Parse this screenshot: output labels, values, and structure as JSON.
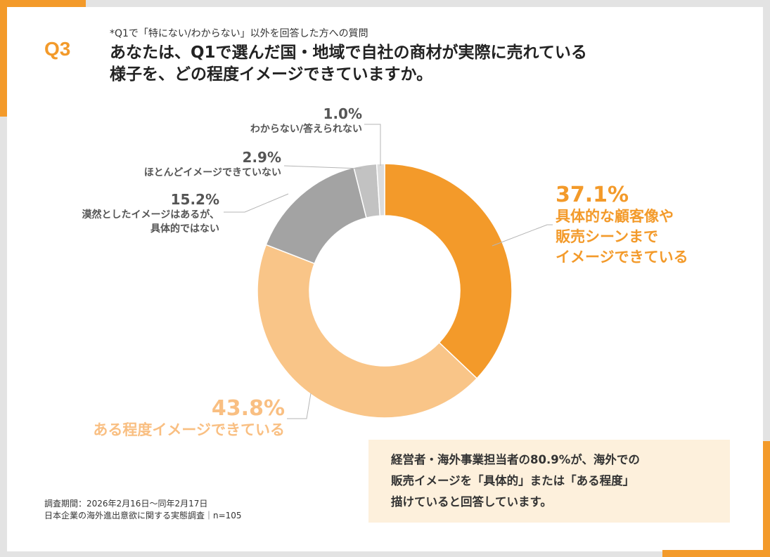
{
  "header": {
    "question_number": "Q3",
    "note": "*Q1で「特にない/わからない」以外を回答した方への質問",
    "title_line1": "あなたは、Q1で選んだ国・地域で自社の商材が実際に売れている",
    "title_line2": "様子を、どの程度イメージできていますか。"
  },
  "chart_data": {
    "type": "pie",
    "donut": true,
    "categories": [
      "具体的な顧客像や販売シーンまでイメージできている",
      "ある程度イメージできている",
      "漠然としたイメージはあるが、具体的ではない",
      "ほとんどイメージできていない",
      "わからない/答えられない"
    ],
    "values": [
      37.1,
      43.8,
      15.2,
      2.9,
      1.0
    ],
    "value_labels": [
      "37.1%",
      "43.8%",
      "15.2%",
      "2.9%",
      "1.0%"
    ],
    "label_lines": [
      [
        "具体的な顧客像や",
        "販売シーンまで",
        "イメージできている"
      ],
      [
        "ある程度イメージできている"
      ],
      [
        "漠然としたイメージはあるが、",
        "具体的ではない"
      ],
      [
        "ほとんどイメージできていない"
      ],
      [
        "わからない/答えられない"
      ]
    ],
    "colors": [
      "#f39a2a",
      "#f9c588",
      "#a3a3a3",
      "#c2c2c2",
      "#dcdcdc"
    ],
    "start": "top",
    "direction": "clockwise"
  },
  "callout": {
    "line1": "経営者・海外事業担当者の80.9%が、海外での",
    "line2": "販売イメージを「具体的」または「ある程度」",
    "line3": "描けていると回答しています。"
  },
  "footer": {
    "period": "調査期間：2026年2月16日～同年2月17日",
    "survey": "日本企業の海外進出意欲に関する実態調査｜n=105"
  }
}
